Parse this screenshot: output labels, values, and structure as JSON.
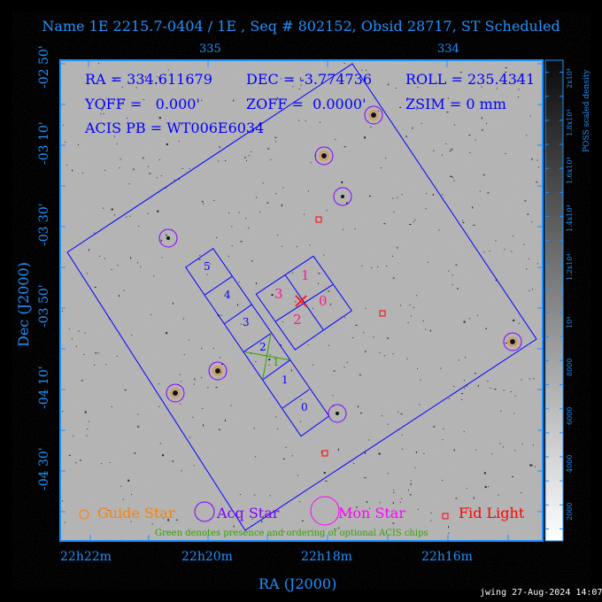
{
  "title": "Name 1E 2215.7-0404 / 1E , Seq # 802152, Obsid 28717, ST Scheduled",
  "info": {
    "ra": "RA = 334.611679",
    "dec": "DEC = -3.774736",
    "roll": "ROLL = 235.4341",
    "yoff": "YOFF =   0.000'",
    "zoff": "ZOFF =  0.0000'",
    "zsim": "ZSIM = 0 mm",
    "acis_pb": "ACIS PB = WT006E6034"
  },
  "axes": {
    "top_ticks": [
      "335",
      "334"
    ],
    "left_ticks": [
      "-02 50'",
      "-03 10'",
      "-03 30'",
      "-03 50'",
      "-04 10'",
      "-04 30'"
    ],
    "bottom_ticks": [
      "22h22m",
      "22h20m",
      "22h18m",
      "22h16m"
    ],
    "xlabel": "RA (J2000)",
    "ylabel": "Dec (J2000)"
  },
  "colorbar": {
    "label": "POSS scaled density",
    "ticks": [
      "2000",
      "4000",
      "6000",
      "8000",
      "10⁴",
      "1.2x10⁴",
      "1.4x10⁴",
      "1.6x10⁴",
      "1.8x10⁴",
      "2x10⁴"
    ]
  },
  "chips": {
    "acis_s": [
      "5",
      "4",
      "3",
      "2",
      "1",
      "0"
    ],
    "acis_i": [
      "1",
      "3",
      "0",
      "2"
    ],
    "optional": "1"
  },
  "legend": {
    "guide": "Guide Star",
    "acq": "Acq Star",
    "mon": "Mon Star",
    "fid": "Fid Light",
    "note": "Green denotes presence and ordering of optional ACIS chips"
  },
  "colors": {
    "axis": "#1e90ff",
    "field": "#0000ff",
    "guide": "#ff8000",
    "acq": "#8000ff",
    "mon": "#ff00ff",
    "fid": "#ff0000",
    "i_labels": "#ff1493",
    "optional": "#33a000"
  },
  "footer": "jwing 27-Aug-2024 14:07"
}
